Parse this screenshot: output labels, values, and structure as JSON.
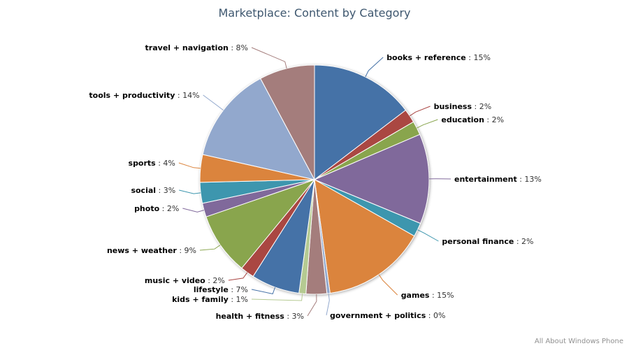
{
  "chart_data": {
    "type": "pie",
    "title": "Marketplace: Content by Category",
    "slices": [
      {
        "label": "books + reference",
        "value": 15,
        "color": "#4572a7"
      },
      {
        "label": "business",
        "value": 2,
        "color": "#aa4643"
      },
      {
        "label": "education",
        "value": 2,
        "color": "#89a54e"
      },
      {
        "label": "entertainment",
        "value": 13,
        "color": "#80699b"
      },
      {
        "label": "personal finance",
        "value": 2,
        "color": "#3d96ae"
      },
      {
        "label": "games",
        "value": 15,
        "color": "#db843d"
      },
      {
        "label": "government + politics",
        "value": 0,
        "color": "#92a8cd"
      },
      {
        "label": "health + fitness",
        "value": 3,
        "color": "#a47d7c"
      },
      {
        "label": "kids + family",
        "value": 1,
        "color": "#b5ca92"
      },
      {
        "label": "lifestyle",
        "value": 7,
        "color": "#4572a7"
      },
      {
        "label": "music + video",
        "value": 2,
        "color": "#aa4643"
      },
      {
        "label": "news + weather",
        "value": 9,
        "color": "#89a54e"
      },
      {
        "label": "photo",
        "value": 2,
        "color": "#80699b"
      },
      {
        "label": "social",
        "value": 3,
        "color": "#3d96ae"
      },
      {
        "label": "sports",
        "value": 4,
        "color": "#db843d"
      },
      {
        "label": "tools + productivity",
        "value": 14,
        "color": "#92a8cd"
      },
      {
        "label": "travel + navigation",
        "value": 8,
        "color": "#a47d7c"
      }
    ]
  },
  "credit": "All About Windows Phone"
}
